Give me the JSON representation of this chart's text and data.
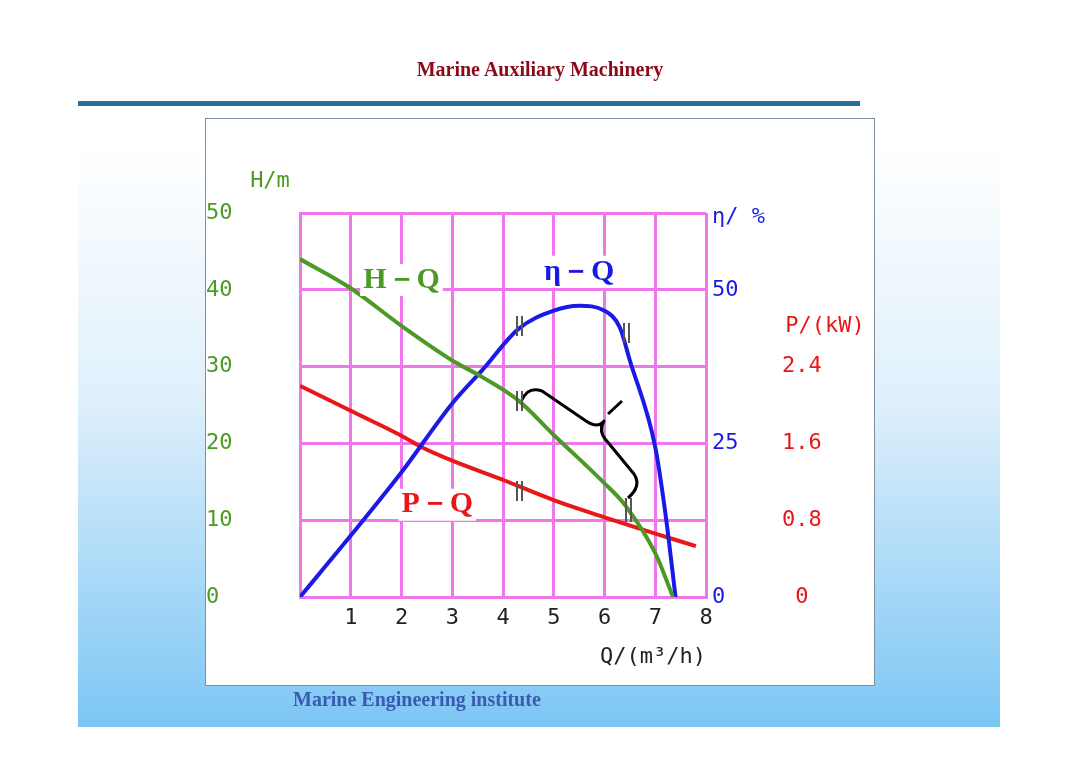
{
  "chart_data": {
    "type": "line",
    "title": "Marine Auxiliary Machinery",
    "xlabel": "Q/(m³/h)",
    "ylabel": "H/m",
    "y2label": "η/ %",
    "y3label": "P/(kW)",
    "xlim": [
      0,
      8
    ],
    "xticks": [
      {
        "value": 0,
        "label": null
      },
      1,
      2,
      3,
      4,
      5,
      6,
      7,
      8
    ],
    "ylim": [
      0,
      50
    ],
    "yticks": [
      0,
      10,
      20,
      30,
      40,
      50
    ],
    "y2lim": [
      0,
      62.5
    ],
    "y2ticks": [
      0,
      25,
      50
    ],
    "y3lim": [
      0,
      4
    ],
    "y3ticks": [
      0,
      0.8,
      1.6,
      2.4
    ],
    "grid": true,
    "legend": false,
    "marker": "none",
    "line_style": "solid",
    "annotations": [
      "Marine Engineering institute"
    ],
    "series": [
      {
        "name": "H－Q",
        "color": "#4b9a26",
        "x": [
          0,
          1,
          2,
          3,
          3.6,
          4.3,
          5,
          6,
          6.4,
          7,
          7.35
        ],
        "values": [
          44,
          40.2,
          35.3,
          30.8,
          28.6,
          25.6,
          21.1,
          14.8,
          12,
          5.7,
          0
        ]
      },
      {
        "name": "η－Q",
        "axis": "y2",
        "color": "#1a1ae6",
        "x": [
          0,
          1,
          2,
          3,
          3.6,
          4.3,
          5,
          5.5,
          6,
          6.3,
          6.5,
          7,
          7.2,
          7.4
        ],
        "values": [
          0,
          10,
          20.3,
          31.5,
          37,
          43.6,
          46.6,
          47.4,
          46.6,
          43.9,
          38.5,
          24.4,
          13.6,
          0
        ]
      },
      {
        "name": "P－Q",
        "axis": "y3",
        "color": "#e81818",
        "x": [
          0,
          1,
          2,
          2.4,
          3,
          4,
          5,
          6,
          7,
          7.8
        ],
        "values": [
          2.2,
          1.94,
          1.68,
          1.56,
          1.42,
          1.22,
          1.01,
          0.83,
          0.66,
          0.53
        ]
      }
    ]
  }
}
